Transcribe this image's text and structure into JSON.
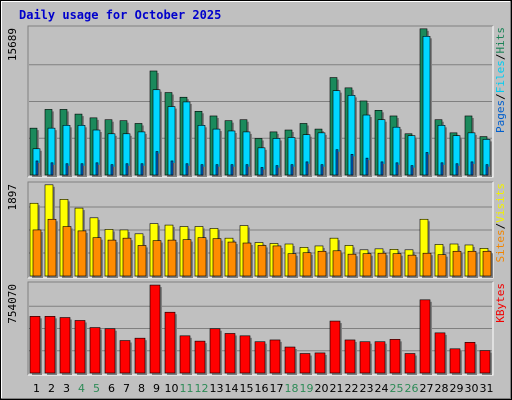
{
  "window": {
    "title": "Daily usage for October 2025"
  },
  "colors": {
    "hits": "#1b8a5c",
    "files": "#00d8ff",
    "pages": "#0064d8",
    "visits": "#ffff00",
    "sites": "#ff8c00",
    "kbytes": "#ff0000",
    "weekend": "#2e8b57",
    "weekday": "#000000",
    "plot_bg": "#c0c0c0"
  },
  "chart_data": [
    {
      "type": "bar",
      "title": "Daily usage for October 2025",
      "ylim": [
        0,
        15689
      ],
      "ymax_label": "15689",
      "grid": true,
      "legend_placement": "right (vertical)",
      "legend_entries": [
        {
          "text": "Pages",
          "color": "#0064d8"
        },
        {
          "text": "Files",
          "color": "#00d8ff"
        },
        {
          "text": "Hits",
          "color": "#1b8a5c"
        }
      ],
      "categories": [
        "1",
        "2",
        "3",
        "4",
        "5",
        "6",
        "7",
        "8",
        "9",
        "10",
        "11",
        "12",
        "13",
        "14",
        "15",
        "16",
        "17",
        "18",
        "19",
        "20",
        "21",
        "22",
        "23",
        "24",
        "25",
        "26",
        "27",
        "28",
        "29",
        "30",
        "31"
      ],
      "series": [
        {
          "name": "Hits",
          "values": [
            5000,
            7000,
            7000,
            6500,
            6100,
            5900,
            5800,
            5500,
            11100,
            8800,
            8300,
            6800,
            6300,
            5800,
            5900,
            3900,
            4600,
            4800,
            5500,
            4900,
            10400,
            9300,
            7900,
            6900,
            6300,
            4400,
            15600,
            5900,
            4500,
            6300,
            4100
          ]
        },
        {
          "name": "Files",
          "values": [
            2800,
            5000,
            5300,
            5300,
            4800,
            4400,
            4400,
            4600,
            9100,
            7300,
            7800,
            5300,
            4900,
            4700,
            4600,
            2900,
            3900,
            4000,
            4300,
            4500,
            9000,
            8500,
            6400,
            5900,
            5100,
            4200,
            14800,
            5300,
            4200,
            4500,
            3800
          ]
        },
        {
          "name": "Pages",
          "values": [
            1500,
            1300,
            1200,
            1200,
            1300,
            1100,
            1200,
            1200,
            2500,
            1500,
            1200,
            1100,
            1100,
            1100,
            1100,
            800,
            1000,
            1100,
            1400,
            1100,
            2700,
            2200,
            1800,
            1400,
            1300,
            1000,
            2400,
            1300,
            1200,
            1400,
            1100
          ]
        }
      ]
    },
    {
      "type": "bar",
      "ylim": [
        0,
        1897
      ],
      "ymax_label": "1897",
      "grid": true,
      "legend_placement": "right (vertical)",
      "legend_entries": [
        {
          "text": "Sites",
          "color": "#ff8c00"
        },
        {
          "text": "Visits",
          "color": "#ffff00"
        }
      ],
      "categories": [
        "1",
        "2",
        "3",
        "4",
        "5",
        "6",
        "7",
        "8",
        "9",
        "10",
        "11",
        "12",
        "13",
        "14",
        "15",
        "16",
        "17",
        "18",
        "19",
        "20",
        "21",
        "22",
        "23",
        "24",
        "25",
        "26",
        "27",
        "28",
        "29",
        "30",
        "31"
      ],
      "series": [
        {
          "name": "Visits",
          "values": [
            1500,
            1880,
            1580,
            1400,
            1200,
            960,
            950,
            870,
            1080,
            1050,
            1020,
            1020,
            980,
            780,
            1040,
            690,
            670,
            660,
            590,
            620,
            780,
            630,
            540,
            560,
            550,
            540,
            1170,
            650,
            660,
            640,
            570
          ]
        },
        {
          "name": "Sites",
          "values": [
            950,
            1170,
            1020,
            930,
            790,
            740,
            780,
            630,
            730,
            740,
            750,
            790,
            770,
            700,
            680,
            630,
            620,
            460,
            480,
            510,
            520,
            450,
            460,
            470,
            460,
            430,
            470,
            440,
            510,
            510,
            510
          ]
        }
      ]
    },
    {
      "type": "bar",
      "ylim": [
        0,
        754070
      ],
      "ymax_label": "754070",
      "grid": true,
      "legend_placement": "right (vertical)",
      "legend_entries": [
        {
          "text": "KBytes",
          "color": "#ff0000"
        }
      ],
      "categories": [
        "1",
        "2",
        "3",
        "4",
        "5",
        "6",
        "7",
        "8",
        "9",
        "10",
        "11",
        "12",
        "13",
        "14",
        "15",
        "16",
        "17",
        "18",
        "19",
        "20",
        "21",
        "22",
        "23",
        "24",
        "25",
        "26",
        "27",
        "28",
        "29",
        "30",
        "31"
      ],
      "series": [
        {
          "name": "KBytes",
          "values": [
            480000,
            480000,
            470000,
            445000,
            385000,
            375000,
            275000,
            295000,
            745000,
            515000,
            315000,
            270000,
            375000,
            335000,
            315000,
            265000,
            280000,
            220000,
            165000,
            170000,
            440000,
            280000,
            265000,
            265000,
            285000,
            165000,
            620000,
            340000,
            205000,
            260000,
            190000
          ]
        }
      ]
    }
  ]
}
